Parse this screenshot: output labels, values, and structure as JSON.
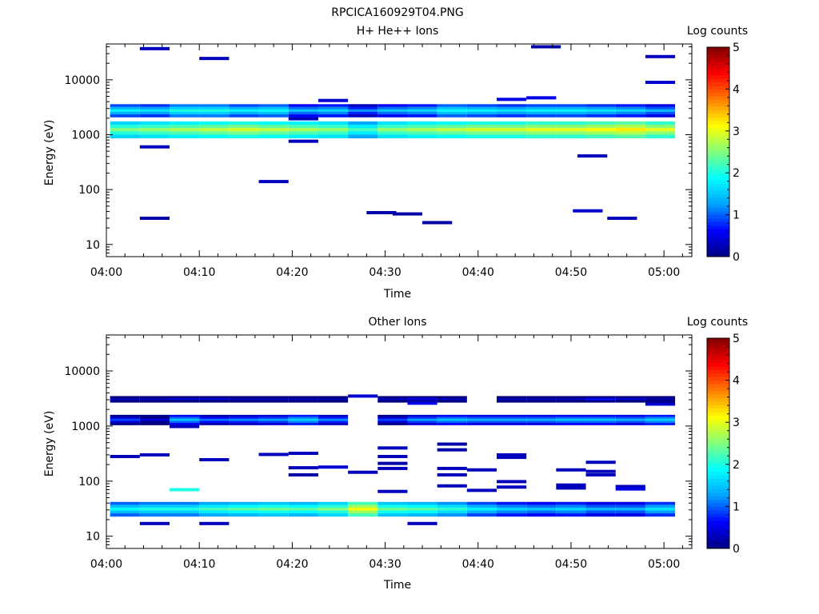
{
  "figure_title": "RPCICA160929T04.PNG",
  "colors": {
    "colormap": [
      "#000080",
      "#0000ff",
      "#00a0ff",
      "#00ffff",
      "#80ff80",
      "#ffff00",
      "#ff8000",
      "#ff0000",
      "#800000"
    ],
    "background": "#ffffff",
    "axes": "#000000"
  },
  "chart_data": [
    {
      "type": "heatmap",
      "title": "H+ He++ Ions",
      "xlabel": "Time",
      "ylabel": "Energy (eV)",
      "x_ticks": [
        "04:00",
        "04:10",
        "04:20",
        "04:30",
        "04:40",
        "04:50",
        "05:00"
      ],
      "x_range_minutes": [
        0,
        63
      ],
      "y_scale": "log",
      "y_range": [
        6,
        45000
      ],
      "y_ticks": [
        10,
        100,
        1000,
        10000
      ],
      "y_tick_labels": [
        "10",
        "100",
        "1000",
        "10000"
      ],
      "colorbar": {
        "label": "Log counts",
        "range": [
          0,
          5
        ],
        "ticks": [
          "0",
          "1",
          "2",
          "3",
          "4",
          "5"
        ]
      },
      "time_bins_minutes": [
        2,
        5.2,
        8.4,
        11.6,
        14.8,
        18,
        21.2,
        24.4,
        27.6,
        30.8,
        34,
        37.2,
        40.4,
        43.6,
        46.8,
        50,
        53.2,
        56.4,
        59.6
      ],
      "time_bin_width_minutes": 3.2,
      "bands": [
        {
          "e_lo": 870,
          "e_hi": 1750,
          "values": [
            2.5,
            2.6,
            2.7,
            2.8,
            2.9,
            2.8,
            2.7,
            2.6,
            2.2,
            2.6,
            2.7,
            2.8,
            2.9,
            2.9,
            3.0,
            3.0,
            3.1,
            3.2,
            3.0
          ]
        },
        {
          "e_lo": 2100,
          "e_hi": 3600,
          "values": [
            1.8,
            1.7,
            2.0,
            2.0,
            1.8,
            1.9,
            1.5,
            1.6,
            1.2,
            1.5,
            1.6,
            1.9,
            1.8,
            1.7,
            1.8,
            1.8,
            1.7,
            1.6,
            1.4
          ]
        }
      ],
      "points": [
        {
          "t": 5.2,
          "e": 37000,
          "v": 0.3
        },
        {
          "t": 11.6,
          "e": 24500,
          "v": 0.3
        },
        {
          "t": 47.3,
          "e": 40000,
          "v": 0.2
        },
        {
          "t": 59.6,
          "e": 26500,
          "v": 0.3
        },
        {
          "t": 59.6,
          "e": 9000,
          "v": 0.4
        },
        {
          "t": 24.4,
          "e": 4200,
          "v": 0.4
        },
        {
          "t": 43.6,
          "e": 4400,
          "v": 0.5
        },
        {
          "t": 46.8,
          "e": 4700,
          "v": 0.5
        },
        {
          "t": 5.2,
          "e": 600,
          "v": 0.3
        },
        {
          "t": 18,
          "e": 140,
          "v": 0.3
        },
        {
          "t": 52.3,
          "e": 410,
          "v": 0.3
        },
        {
          "t": 5.2,
          "e": 30,
          "v": 0.2
        },
        {
          "t": 29.6,
          "e": 38,
          "v": 0.2
        },
        {
          "t": 32.4,
          "e": 36,
          "v": 0.2
        },
        {
          "t": 35.6,
          "e": 25,
          "v": 0.2
        },
        {
          "t": 51.8,
          "e": 41,
          "v": 0.4
        },
        {
          "t": 55.5,
          "e": 30,
          "v": 0.3
        },
        {
          "t": 21.2,
          "e": 760,
          "v": 0.3
        },
        {
          "t": 21.2,
          "e": 1950,
          "v": 0.3
        }
      ]
    },
    {
      "type": "heatmap",
      "title": "Other Ions",
      "xlabel": "Time",
      "ylabel": "Energy (eV)",
      "x_ticks": [
        "04:00",
        "04:10",
        "04:20",
        "04:30",
        "04:40",
        "04:50",
        "05:00"
      ],
      "x_range_minutes": [
        0,
        63
      ],
      "y_scale": "log",
      "y_range": [
        6,
        45000
      ],
      "y_ticks": [
        10,
        100,
        1000,
        10000
      ],
      "y_tick_labels": [
        "10",
        "100",
        "1000",
        "10000"
      ],
      "colorbar": {
        "label": "Log counts",
        "range": [
          0,
          5
        ],
        "ticks": [
          "0",
          "1",
          "2",
          "3",
          "4",
          "5"
        ]
      },
      "time_bins_minutes": [
        2,
        5.2,
        8.4,
        11.6,
        14.8,
        18,
        21.2,
        24.4,
        27.6,
        30.8,
        34,
        37.2,
        40.4,
        43.6,
        46.8,
        50,
        53.2,
        56.4,
        59.6
      ],
      "time_bin_width_minutes": 3.2,
      "bands": [
        {
          "e_lo": 2700,
          "e_hi": 3500,
          "values": [
            0.4,
            0.4,
            0.5,
            0.5,
            0.4,
            0.4,
            0.4,
            0.3,
            null,
            0.4,
            0.6,
            0.4,
            null,
            0.4,
            0.4,
            0.4,
            0.7,
            0.5,
            0.3
          ]
        },
        {
          "e_lo": 1050,
          "e_hi": 1600,
          "values": [
            0.9,
            0.5,
            1.5,
            1.1,
            1.2,
            1.3,
            1.6,
            1.2,
            null,
            0.9,
            1.3,
            1.5,
            1.4,
            1.4,
            1.4,
            1.5,
            1.5,
            1.4,
            1.6
          ]
        },
        {
          "e_lo": 23,
          "e_hi": 42,
          "values": [
            1.9,
            2.0,
            2.0,
            2.2,
            2.3,
            2.4,
            2.3,
            2.5,
            3.1,
            2.4,
            2.3,
            2.1,
            1.8,
            1.6,
            1.5,
            1.6,
            1.4,
            1.4,
            1.7
          ]
        }
      ],
      "points": [
        {
          "t": 2,
          "e": 280,
          "v": 0.3
        },
        {
          "t": 5.2,
          "e": 300,
          "v": 0.3
        },
        {
          "t": 11.6,
          "e": 245,
          "v": 0.3
        },
        {
          "t": 18,
          "e": 305,
          "v": 0.3
        },
        {
          "t": 21.2,
          "e": 320,
          "v": 0.3
        },
        {
          "t": 21.2,
          "e": 175,
          "v": 0.3
        },
        {
          "t": 21.2,
          "e": 130,
          "v": 0.2
        },
        {
          "t": 24.4,
          "e": 180,
          "v": 0.4
        },
        {
          "t": 27.6,
          "e": 145,
          "v": 0.3
        },
        {
          "t": 30.8,
          "e": 400,
          "v": 0.3
        },
        {
          "t": 30.8,
          "e": 280,
          "v": 0.3
        },
        {
          "t": 30.8,
          "e": 210,
          "v": 0.2
        },
        {
          "t": 30.8,
          "e": 170,
          "v": 0.3
        },
        {
          "t": 30.8,
          "e": 65,
          "v": 0.3
        },
        {
          "t": 37.2,
          "e": 470,
          "v": 0.2
        },
        {
          "t": 37.2,
          "e": 370,
          "v": 0.2
        },
        {
          "t": 37.2,
          "e": 170,
          "v": 0.3
        },
        {
          "t": 37.2,
          "e": 130,
          "v": 0.3
        },
        {
          "t": 37.2,
          "e": 82,
          "v": 0.3
        },
        {
          "t": 40.4,
          "e": 160,
          "v": 0.3
        },
        {
          "t": 40.4,
          "e": 68,
          "v": 0.3
        },
        {
          "t": 43.6,
          "e": 300,
          "v": 0.3
        },
        {
          "t": 43.6,
          "e": 270,
          "v": 0.3
        },
        {
          "t": 43.6,
          "e": 98,
          "v": 0.3
        },
        {
          "t": 43.6,
          "e": 78,
          "v": 0.3
        },
        {
          "t": 50,
          "e": 160,
          "v": 0.3
        },
        {
          "t": 50,
          "e": 85,
          "v": 0.3
        },
        {
          "t": 50,
          "e": 75,
          "v": 0.3
        },
        {
          "t": 53.2,
          "e": 220,
          "v": 0.3
        },
        {
          "t": 53.2,
          "e": 150,
          "v": 0.3
        },
        {
          "t": 53.2,
          "e": 130,
          "v": 0.3
        },
        {
          "t": 56.4,
          "e": 80,
          "v": 0.3
        },
        {
          "t": 56.4,
          "e": 72,
          "v": 0.5
        },
        {
          "t": 8.4,
          "e": 70,
          "v": 2.0
        },
        {
          "t": 5.2,
          "e": 17,
          "v": 0.3
        },
        {
          "t": 11.6,
          "e": 17,
          "v": 0.3
        },
        {
          "t": 34,
          "e": 17,
          "v": 0.3
        },
        {
          "t": 8.4,
          "e": 980,
          "v": 0.3
        },
        {
          "t": 27.6,
          "e": 3500,
          "v": 0.4
        },
        {
          "t": 34,
          "e": 2600,
          "v": 0.5
        },
        {
          "t": 59.6,
          "e": 2500,
          "v": 0.4
        }
      ]
    }
  ]
}
